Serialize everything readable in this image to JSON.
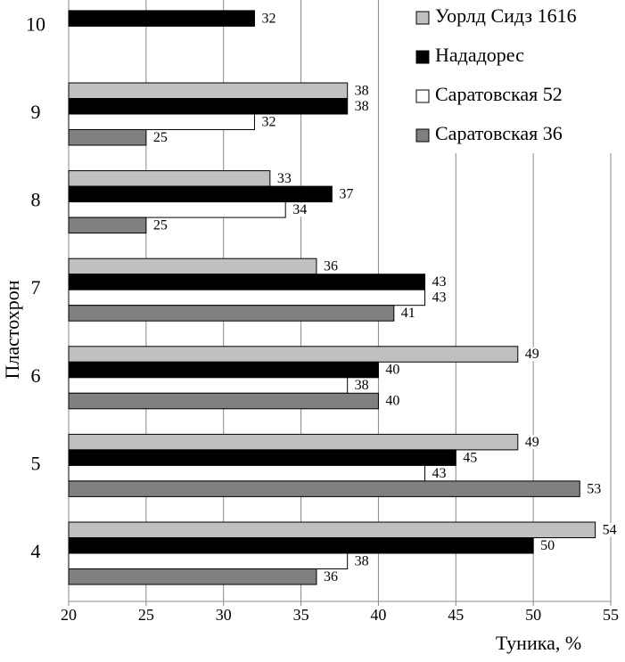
{
  "chart_data": {
    "type": "barh",
    "categories": [
      "4",
      "5",
      "6",
      "7",
      "8",
      "9",
      "10"
    ],
    "series": [
      {
        "name": "Уорлд Сидз 1616",
        "color": "#c0c0c0",
        "values": [
          54,
          49,
          49,
          36,
          33,
          38,
          null
        ]
      },
      {
        "name": "Нададорес",
        "color": "#000000",
        "values": [
          50,
          45,
          40,
          43,
          37,
          38,
          32
        ]
      },
      {
        "name": "Саратовская 52",
        "color": "#ffffff",
        "values": [
          38,
          43,
          38,
          43,
          34,
          32,
          null
        ]
      },
      {
        "name": "Саратовская 36",
        "color": "#808080",
        "values": [
          36,
          53,
          40,
          41,
          25,
          25,
          null
        ]
      }
    ],
    "xlim": [
      20,
      55
    ],
    "xticks": [
      20,
      25,
      30,
      35,
      40,
      45,
      50,
      55
    ],
    "grid": true,
    "xlabel": "Туника, %",
    "ylabel": "Пластохрон",
    "legend": "upper right"
  }
}
